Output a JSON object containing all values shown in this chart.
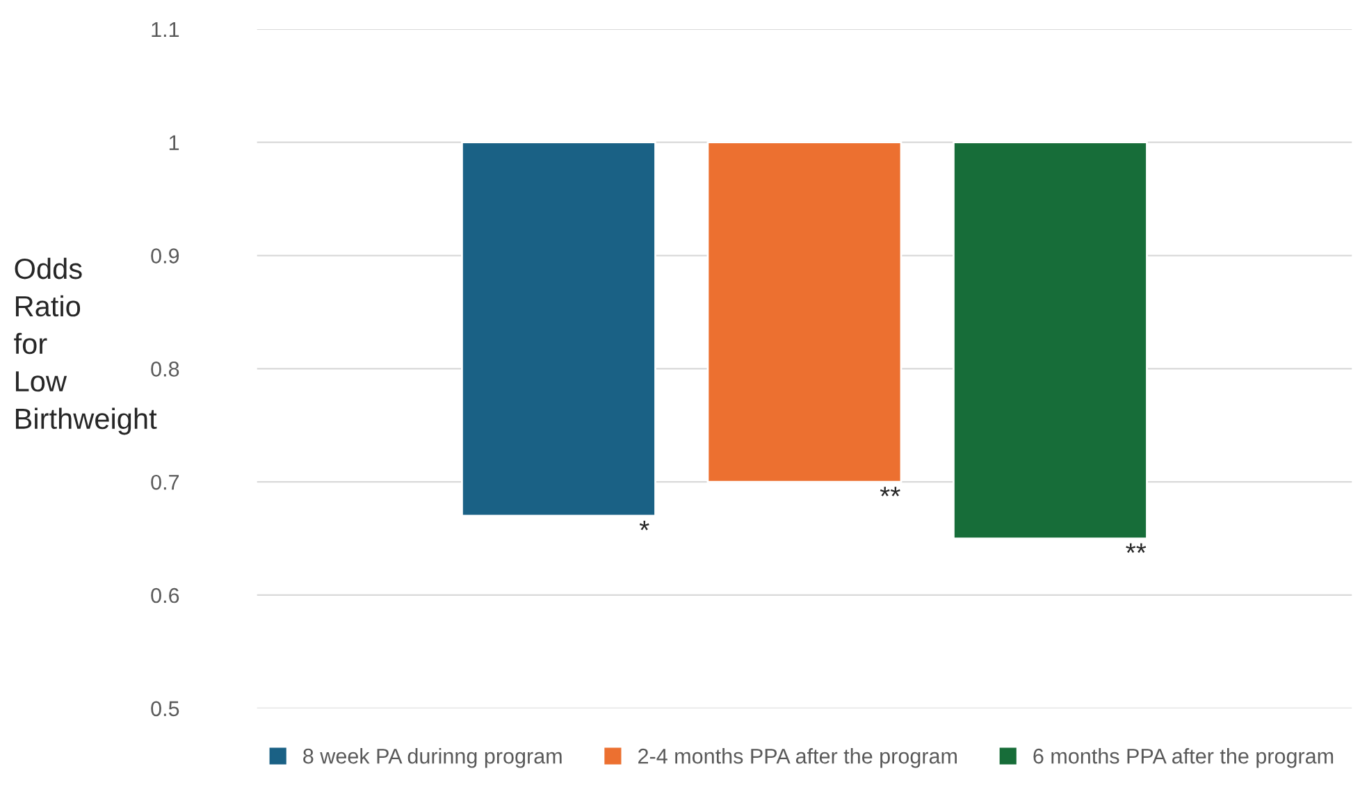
{
  "chart_data": {
    "type": "bar",
    "ylabel": "Odds Ratio for Low Birthweight",
    "categories": [
      null
    ],
    "series": [
      {
        "name": "8 week PA durinng program",
        "color": "#1a6185",
        "values": [
          -0.33
        ],
        "base": [
          1
        ]
      },
      {
        "name": "2-4 months PPA after the program",
        "color": "#ec7030",
        "values": [
          -0.3
        ],
        "base": [
          1
        ]
      },
      {
        "name": "6 months PPA after the program",
        "color": "#176d39",
        "values": [
          -0.35
        ],
        "base": [
          1
        ]
      }
    ],
    "annotations": [
      {
        "text": "*",
        "y": 0.67
      },
      {
        "text": "**",
        "y": 0.7
      },
      {
        "text": "**",
        "y": 0.65
      }
    ],
    "ylim": [
      0.5,
      1.1
    ],
    "yticks": [
      0.5,
      0.6,
      0.7,
      0.8,
      0.9,
      1,
      1.1
    ],
    "grid": "y",
    "legend": "bottom"
  }
}
